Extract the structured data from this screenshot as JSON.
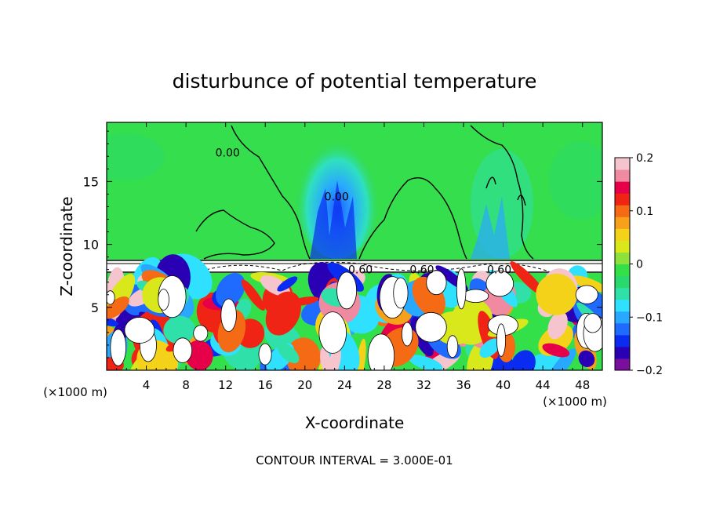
{
  "chart_data": {
    "type": "heatmap",
    "title": "disturbunce of potential temperature",
    "xlabel": "X-coordinate",
    "ylabel": "Z-coordinate",
    "x_unit_left": "(×1000 m)",
    "x_unit_right": "(×1000 m)",
    "footnote": "CONTOUR INTERVAL = 3.000E-01",
    "xlim": [
      0,
      50
    ],
    "ylim": [
      0,
      19.7
    ],
    "x_ticks": [
      4,
      8,
      12,
      16,
      20,
      24,
      28,
      32,
      36,
      40,
      44,
      48
    ],
    "y_ticks": [
      5,
      10,
      15
    ],
    "colorbar": {
      "range": [
        -0.2,
        0.2
      ],
      "tick_values": [
        0.2,
        0.1,
        0,
        -0.1,
        -0.2
      ],
      "tick_labels": [
        "0.2",
        "0.1",
        "0",
        "−0.1",
        "−0.2"
      ],
      "colors": [
        "#7a0f9e",
        "#2a00b4",
        "#0a2cf0",
        "#1f6bff",
        "#29a8ff",
        "#2fe0ff",
        "#2fe0a8",
        "#29d96b",
        "#33e04a",
        "#8ee03a",
        "#d8e81a",
        "#f5d21a",
        "#f7a01a",
        "#f56a14",
        "#f02414",
        "#e6004a",
        "#f08aa0",
        "#f5c4cc"
      ]
    },
    "contour_labels": [
      {
        "text": "0.00",
        "x": 12.2,
        "z": 17
      },
      {
        "text": "0.00",
        "x": 23.2,
        "z": 13.5
      },
      {
        "text": "0.60",
        "x": 25.6,
        "z": 7.7
      },
      {
        "text": "0.60",
        "x": 31.8,
        "z": 7.7
      },
      {
        "text": "0.60",
        "x": 39.6,
        "z": 7.7
      }
    ]
  },
  "colors": {
    "background_field": "#31d94b",
    "upper_field": "#35de4c"
  }
}
